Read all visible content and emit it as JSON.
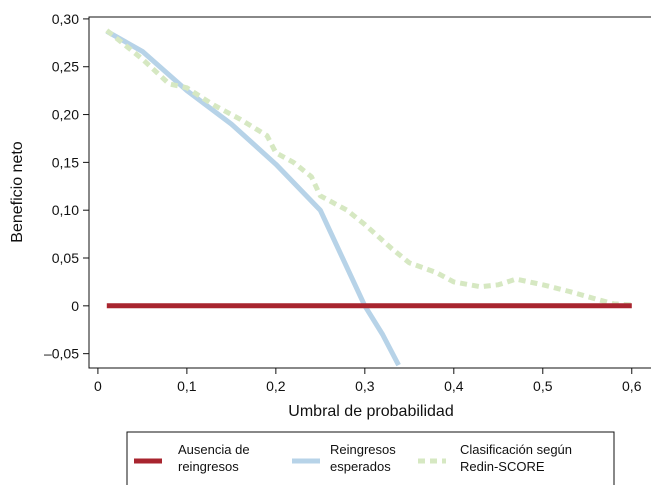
{
  "chart_data": {
    "type": "line",
    "xlabel": "Umbral de probabilidad",
    "ylabel": "Beneficio neto",
    "xlim": [
      -0.01,
      0.625
    ],
    "ylim": [
      -0.065,
      0.302
    ],
    "x_ticks": [
      0,
      0.1,
      0.2,
      0.3,
      0.4,
      0.5,
      0.6
    ],
    "x_tick_labels": [
      "0",
      "0,1",
      "0,2",
      "0,3",
      "0,4",
      "0,5",
      "0,6"
    ],
    "y_ticks": [
      -0.05,
      0,
      0.05,
      0.1,
      0.15,
      0.2,
      0.25,
      0.3
    ],
    "y_tick_labels": [
      "–0,05",
      "0",
      "0,05",
      "0,10",
      "0,15",
      "0,20",
      "0,25",
      "0,30"
    ],
    "grid": false,
    "legend_position": "bottom",
    "series": [
      {
        "name": "Ausencia de reingresos",
        "color": "#a8252f",
        "style": "solid",
        "points": [
          [
            0.01,
            0
          ],
          [
            0.6,
            0
          ]
        ]
      },
      {
        "name": "Reingresos esperados",
        "color": "#b7d3e8",
        "style": "solid",
        "points": [
          [
            0.01,
            0.287
          ],
          [
            0.05,
            0.266
          ],
          [
            0.1,
            0.225
          ],
          [
            0.15,
            0.19
          ],
          [
            0.2,
            0.148
          ],
          [
            0.25,
            0.1
          ],
          [
            0.28,
            0.04
          ],
          [
            0.3,
            0.0
          ],
          [
            0.32,
            -0.03
          ],
          [
            0.338,
            -0.062
          ]
        ]
      },
      {
        "name": "Clasificación según Redin-SCORE",
        "color": "#d6e8c2",
        "style": "dashed",
        "points": [
          [
            0.01,
            0.288
          ],
          [
            0.05,
            0.258
          ],
          [
            0.08,
            0.232
          ],
          [
            0.1,
            0.228
          ],
          [
            0.13,
            0.21
          ],
          [
            0.16,
            0.195
          ],
          [
            0.19,
            0.178
          ],
          [
            0.2,
            0.16
          ],
          [
            0.22,
            0.15
          ],
          [
            0.24,
            0.135
          ],
          [
            0.25,
            0.115
          ],
          [
            0.28,
            0.1
          ],
          [
            0.3,
            0.085
          ],
          [
            0.33,
            0.06
          ],
          [
            0.35,
            0.045
          ],
          [
            0.38,
            0.035
          ],
          [
            0.4,
            0.025
          ],
          [
            0.43,
            0.02
          ],
          [
            0.45,
            0.022
          ],
          [
            0.47,
            0.028
          ],
          [
            0.5,
            0.022
          ],
          [
            0.53,
            0.015
          ],
          [
            0.56,
            0.007
          ],
          [
            0.58,
            0.002
          ],
          [
            0.6,
            0.001
          ]
        ]
      }
    ],
    "legend": [
      {
        "line1": "Ausencia de",
        "line2": "reingresos"
      },
      {
        "line1": "Reingresos",
        "line2": "esperados"
      },
      {
        "line1": "Clasificación según",
        "line2": "Redin-SCORE"
      }
    ]
  }
}
